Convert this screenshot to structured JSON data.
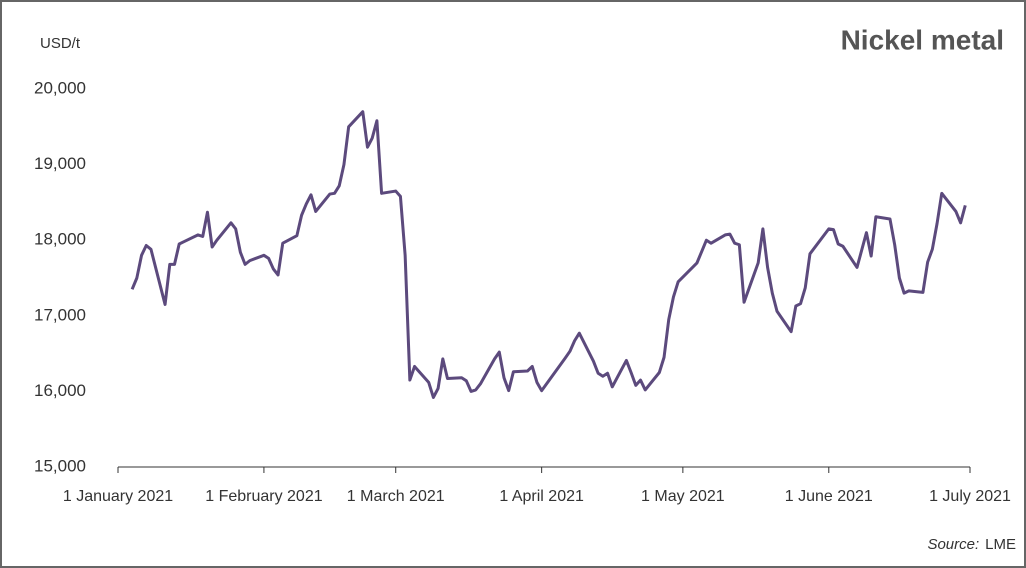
{
  "chart_data": {
    "type": "line",
    "title": "Nickel metal",
    "y_label": "USD/t",
    "source_label": "Source:",
    "source": "LME",
    "x": [
      "2021-01-04",
      "2021-01-05",
      "2021-01-06",
      "2021-01-07",
      "2021-01-08",
      "2021-01-11",
      "2021-01-12",
      "2021-01-13",
      "2021-01-14",
      "2021-01-15",
      "2021-01-18",
      "2021-01-19",
      "2021-01-20",
      "2021-01-21",
      "2021-01-22",
      "2021-01-25",
      "2021-01-26",
      "2021-01-27",
      "2021-01-28",
      "2021-01-29",
      "2021-02-01",
      "2021-02-02",
      "2021-02-03",
      "2021-02-04",
      "2021-02-05",
      "2021-02-08",
      "2021-02-09",
      "2021-02-10",
      "2021-02-11",
      "2021-02-12",
      "2021-02-15",
      "2021-02-16",
      "2021-02-17",
      "2021-02-18",
      "2021-02-19",
      "2021-02-22",
      "2021-02-23",
      "2021-02-24",
      "2021-02-25",
      "2021-02-26",
      "2021-03-01",
      "2021-03-02",
      "2021-03-03",
      "2021-03-04",
      "2021-03-05",
      "2021-03-08",
      "2021-03-09",
      "2021-03-10",
      "2021-03-11",
      "2021-03-12",
      "2021-03-15",
      "2021-03-16",
      "2021-03-17",
      "2021-03-18",
      "2021-03-19",
      "2021-03-22",
      "2021-03-23",
      "2021-03-24",
      "2021-03-25",
      "2021-03-26",
      "2021-03-29",
      "2021-03-30",
      "2021-03-31",
      "2021-04-01",
      "2021-04-06",
      "2021-04-07",
      "2021-04-08",
      "2021-04-09",
      "2021-04-12",
      "2021-04-13",
      "2021-04-14",
      "2021-04-15",
      "2021-04-16",
      "2021-04-19",
      "2021-04-20",
      "2021-04-21",
      "2021-04-22",
      "2021-04-23",
      "2021-04-26",
      "2021-04-27",
      "2021-04-28",
      "2021-04-29",
      "2021-04-30",
      "2021-05-04",
      "2021-05-05",
      "2021-05-06",
      "2021-05-07",
      "2021-05-10",
      "2021-05-11",
      "2021-05-12",
      "2021-05-13",
      "2021-05-14",
      "2021-05-17",
      "2021-05-18",
      "2021-05-19",
      "2021-05-20",
      "2021-05-21",
      "2021-05-24",
      "2021-05-25",
      "2021-05-26",
      "2021-05-27",
      "2021-05-28",
      "2021-06-01",
      "2021-06-02",
      "2021-06-03",
      "2021-06-04",
      "2021-06-07",
      "2021-06-08",
      "2021-06-09",
      "2021-06-10",
      "2021-06-11",
      "2021-06-14",
      "2021-06-15",
      "2021-06-16",
      "2021-06-17",
      "2021-06-18",
      "2021-06-21",
      "2021-06-22",
      "2021-06-23",
      "2021-06-24",
      "2021-06-25",
      "2021-06-28",
      "2021-06-29",
      "2021-06-30"
    ],
    "series": [
      {
        "color": "#5c4a7d",
        "values": [
          17350,
          17500,
          17800,
          17930,
          17880,
          17150,
          17680,
          17680,
          17950,
          17980,
          18070,
          18050,
          18370,
          17910,
          18000,
          18230,
          18150,
          17840,
          17680,
          17730,
          17800,
          17760,
          17620,
          17540,
          17960,
          18060,
          18330,
          18480,
          18600,
          18380,
          18610,
          18620,
          18720,
          19000,
          19500,
          19700,
          19230,
          19350,
          19580,
          18620,
          18650,
          18580,
          17800,
          16150,
          16330,
          16120,
          15920,
          16040,
          16430,
          16170,
          16180,
          16140,
          16000,
          16020,
          16100,
          16430,
          16520,
          16180,
          16010,
          16260,
          16270,
          16330,
          16120,
          16010,
          16440,
          16530,
          16670,
          16770,
          16400,
          16240,
          16200,
          16240,
          16060,
          16410,
          16250,
          16080,
          16150,
          16020,
          16250,
          16450,
          16950,
          17250,
          17450,
          17700,
          17850,
          18000,
          17960,
          18070,
          18080,
          17960,
          17940,
          17180,
          17700,
          18150,
          17640,
          17300,
          17060,
          16790,
          17130,
          17160,
          17370,
          17820,
          18150,
          18140,
          17950,
          17920,
          17640,
          17870,
          18100,
          17790,
          18310,
          18280,
          17940,
          17500,
          17300,
          17330,
          17310,
          17710,
          17880,
          18220,
          18620,
          18380,
          18230,
          18460
        ]
      }
    ],
    "xlim": [
      "2021-01-01",
      "2021-07-01"
    ],
    "xticks": [
      {
        "value": "2021-01-01",
        "label": "1 January 2021"
      },
      {
        "value": "2021-02-01",
        "label": "1 February 2021"
      },
      {
        "value": "2021-03-01",
        "label": "1 March 2021"
      },
      {
        "value": "2021-04-01",
        "label": "1 April 2021"
      },
      {
        "value": "2021-05-01",
        "label": "1 May 2021"
      },
      {
        "value": "2021-06-01",
        "label": "1 June 2021"
      },
      {
        "value": "2021-07-01",
        "label": "1 July 2021"
      }
    ],
    "ylim": [
      15000,
      20000
    ],
    "yticks": [
      {
        "value": 15000,
        "label": "15,000"
      },
      {
        "value": 16000,
        "label": "16,000"
      },
      {
        "value": 17000,
        "label": "17,000"
      },
      {
        "value": 18000,
        "label": "18,000"
      },
      {
        "value": 19000,
        "label": "19,000"
      },
      {
        "value": 20000,
        "label": "20,000"
      }
    ]
  }
}
